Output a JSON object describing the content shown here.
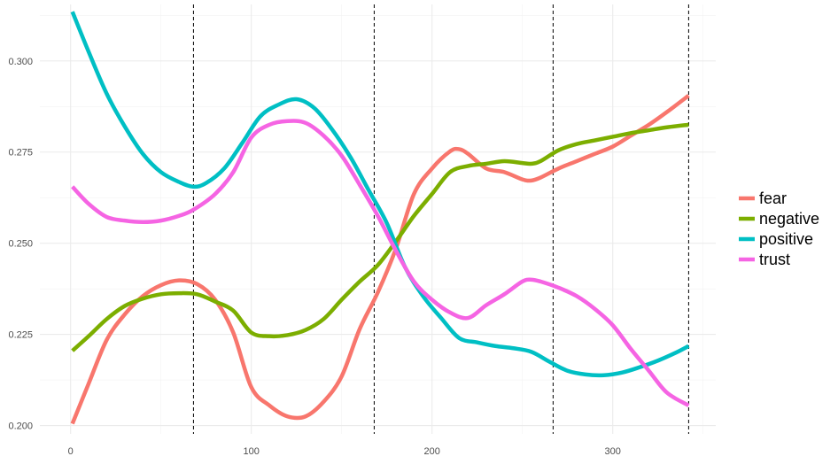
{
  "chart_data": {
    "type": "line",
    "title": "",
    "xlabel": "",
    "ylabel": "",
    "xlim": [
      -17,
      357
    ],
    "ylim": [
      0.1977,
      0.3155
    ],
    "x_ticks": [
      0,
      100,
      200,
      300
    ],
    "y_ticks": [
      0.2,
      0.225,
      0.25,
      0.275,
      0.3
    ],
    "x_tick_labels": [
      "0",
      "100",
      "200",
      "300"
    ],
    "y_tick_labels": [
      "0.200",
      "0.225",
      "0.250",
      "0.275",
      "0.300"
    ],
    "vlines": [
      68,
      168,
      267,
      342
    ],
    "grid": true,
    "legend_position": "right",
    "series": [
      {
        "name": "fear",
        "color": "#F8766D",
        "x": [
          1,
          10,
          20,
          30,
          40,
          50,
          60,
          70,
          80,
          90,
          100,
          110,
          120,
          130,
          140,
          150,
          160,
          170,
          180,
          190,
          200,
          210,
          215,
          220,
          230,
          240,
          250,
          255,
          260,
          270,
          280,
          290,
          300,
          310,
          320,
          330,
          342
        ],
        "y": [
          0.2005,
          0.2115,
          0.2235,
          0.2305,
          0.2355,
          0.2385,
          0.2398,
          0.2388,
          0.2345,
          0.2255,
          0.2105,
          0.2055,
          0.2025,
          0.2025,
          0.2065,
          0.2135,
          0.2265,
          0.2365,
          0.2485,
          0.2635,
          0.2705,
          0.2752,
          0.2758,
          0.2745,
          0.2705,
          0.2695,
          0.2675,
          0.2672,
          0.268,
          0.2705,
          0.2725,
          0.2745,
          0.2765,
          0.2795,
          0.2825,
          0.286,
          0.2905
        ]
      },
      {
        "name": "negative",
        "color": "#7CAE00",
        "x": [
          1,
          10,
          20,
          30,
          40,
          50,
          60,
          70,
          80,
          90,
          100,
          110,
          120,
          130,
          140,
          150,
          160,
          170,
          180,
          190,
          200,
          210,
          220,
          230,
          240,
          250,
          255,
          260,
          270,
          280,
          290,
          300,
          310,
          320,
          330,
          342
        ],
        "y": [
          0.2205,
          0.2245,
          0.2292,
          0.2328,
          0.2348,
          0.236,
          0.2363,
          0.236,
          0.234,
          0.2315,
          0.2255,
          0.2245,
          0.2248,
          0.2262,
          0.2292,
          0.2345,
          0.2395,
          0.244,
          0.2505,
          0.2575,
          0.2635,
          0.2695,
          0.2712,
          0.2718,
          0.2725,
          0.272,
          0.2718,
          0.2725,
          0.2755,
          0.2772,
          0.2782,
          0.2792,
          0.2802,
          0.281,
          0.2818,
          0.2825
        ]
      },
      {
        "name": "positive",
        "color": "#00BFC4",
        "x": [
          1,
          10,
          20,
          30,
          40,
          50,
          60,
          68,
          75,
          85,
          95,
          105,
          115,
          125,
          135,
          145,
          155,
          165,
          175,
          185,
          195,
          205,
          215,
          225,
          235,
          245,
          255,
          265,
          275,
          285,
          295,
          305,
          315,
          325,
          335,
          342
        ],
        "y": [
          0.3135,
          0.3025,
          0.291,
          0.282,
          0.2745,
          0.2695,
          0.2668,
          0.2655,
          0.2665,
          0.2705,
          0.2775,
          0.2848,
          0.288,
          0.2895,
          0.287,
          0.281,
          0.2735,
          0.2645,
          0.2555,
          0.2435,
          0.2355,
          0.2295,
          0.224,
          0.2228,
          0.2218,
          0.2212,
          0.2202,
          0.2175,
          0.215,
          0.214,
          0.2138,
          0.2145,
          0.216,
          0.2178,
          0.22,
          0.2218
        ]
      },
      {
        "name": "trust",
        "color": "#F564E3",
        "x": [
          1,
          10,
          20,
          30,
          40,
          50,
          60,
          68,
          80,
          90,
          100,
          110,
          120,
          130,
          140,
          150,
          160,
          170,
          180,
          190,
          200,
          210,
          220,
          230,
          240,
          250,
          255,
          260,
          270,
          280,
          290,
          300,
          310,
          320,
          330,
          342
        ],
        "y": [
          0.2655,
          0.2608,
          0.2572,
          0.2562,
          0.2558,
          0.2562,
          0.2575,
          0.2592,
          0.2635,
          0.2695,
          0.279,
          0.2825,
          0.2835,
          0.283,
          0.2795,
          0.274,
          0.266,
          0.2575,
          0.248,
          0.2395,
          0.2345,
          0.231,
          0.2295,
          0.233,
          0.236,
          0.2395,
          0.24,
          0.2395,
          0.2378,
          0.2355,
          0.232,
          0.2275,
          0.221,
          0.215,
          0.209,
          0.2055
        ]
      }
    ]
  }
}
